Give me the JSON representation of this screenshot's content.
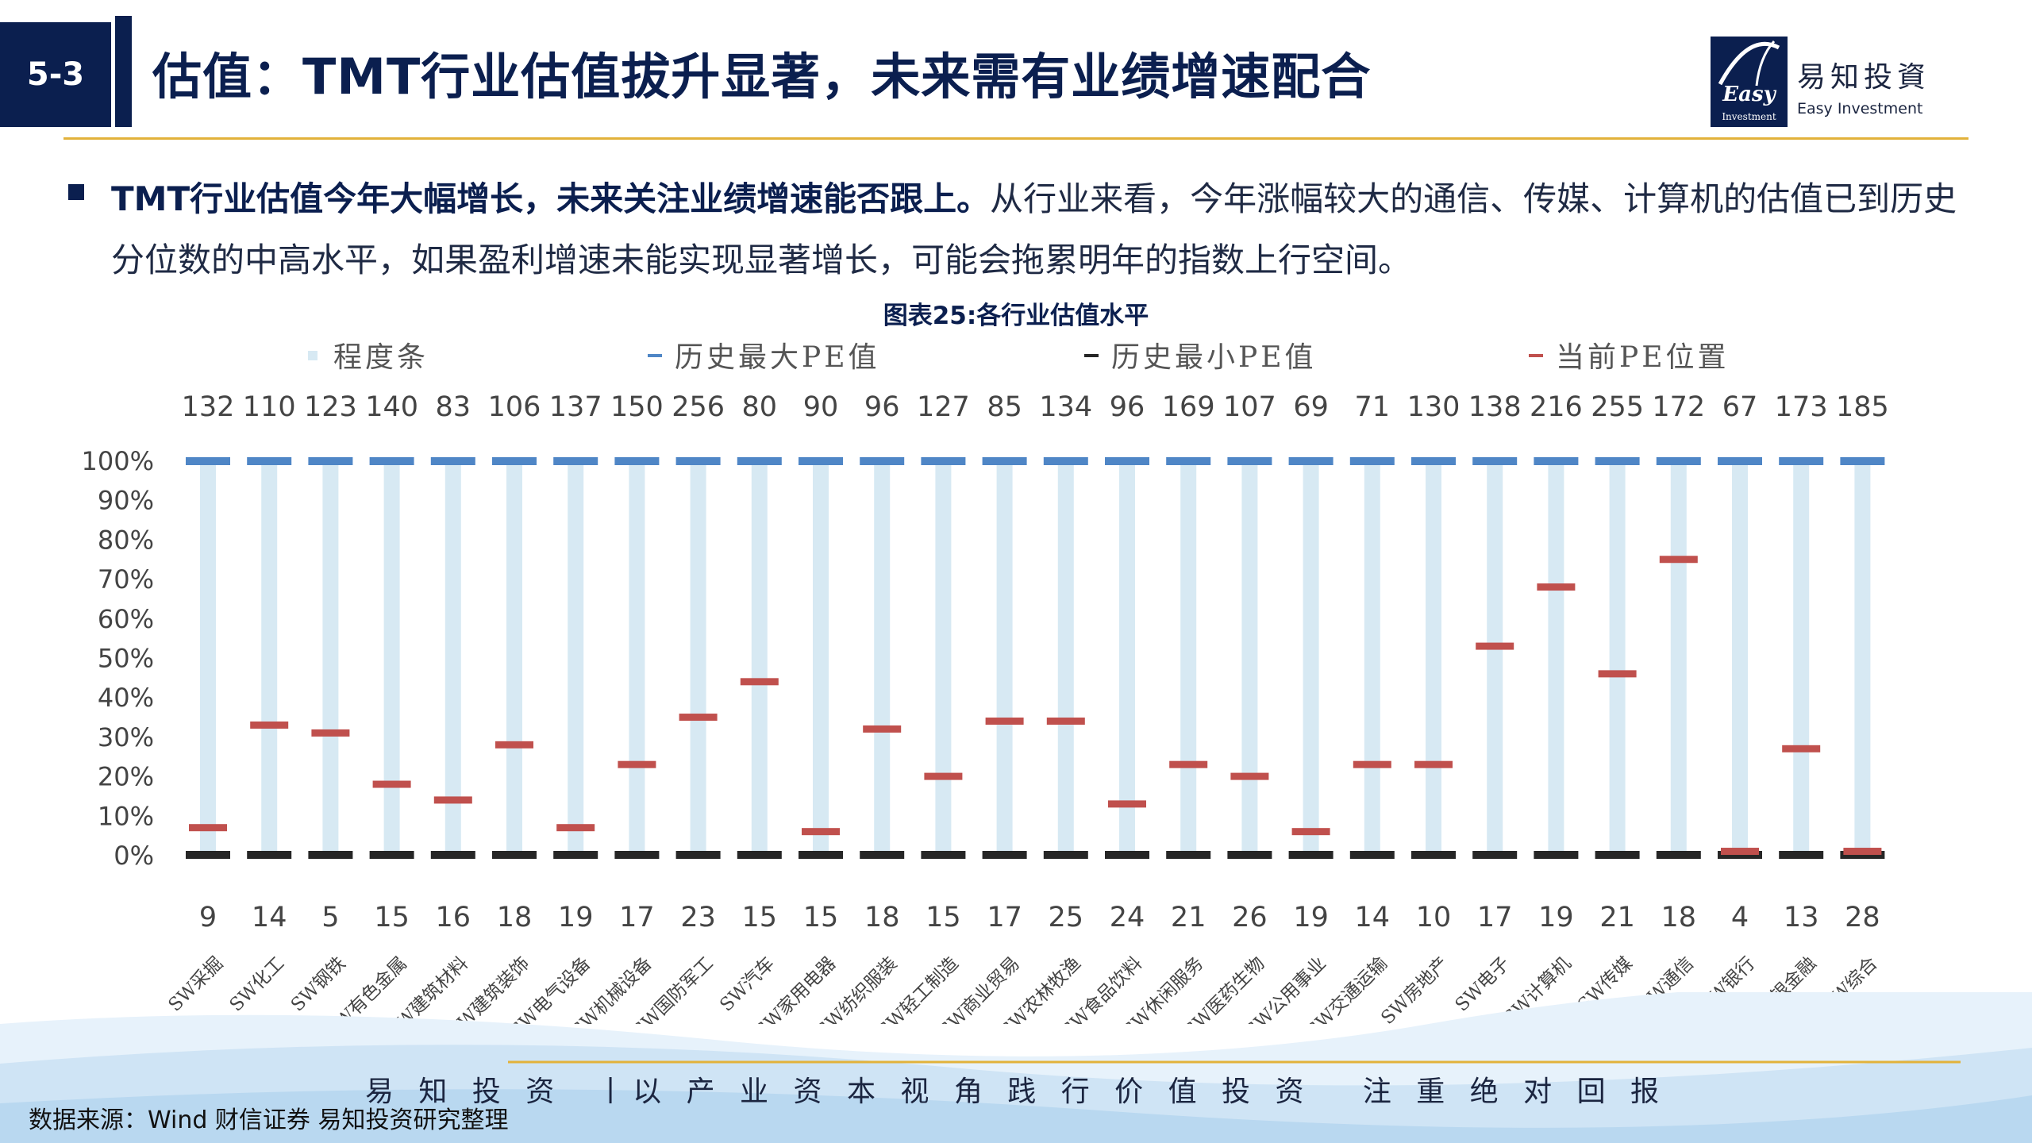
{
  "header": {
    "section_number": "5-3",
    "title": "估值：TMT行业估值拔升显著，未来需有业绩增速配合"
  },
  "logo": {
    "word": "Easy",
    "sub": "Investment",
    "name_cn": "易知投資",
    "name_en": "Easy Investment"
  },
  "bullet": {
    "bold": "TMT行业估值今年大幅增长，未来关注业绩增速能否跟上。",
    "text": "从行业来看，今年涨幅较大的通信、传媒、计算机的估值已到历史分位数的中高水平，如果盈利增速未能实现显著增长，可能会拖累明年的指数上行空间。"
  },
  "figure_title": "图表25:各行业估值水平",
  "footer": {
    "slogan": "易 知 投 资  丨以 产 业 资 本 视 角 践 行 价 值 投 资   注 重 绝 对 回 报",
    "source": "数据来源：Wind 财信证券 易知投资研究整理"
  },
  "colors": {
    "navy": "#0b1f4f",
    "gold": "#e2b23b",
    "bar": "#d7e9f3",
    "max": "#4f86c6",
    "min": "#262626",
    "current": "#c0504d"
  },
  "chart_data": {
    "type": "bar",
    "legend": [
      "程度条",
      "历史最大PE值",
      "历史最小PE值",
      "当前PE位置"
    ],
    "legend_position": "top",
    "categories": [
      "SW采掘",
      "SW化工",
      "SW钢铁",
      "SW有色金属",
      "SW建筑材料",
      "SW建筑装饰",
      "SW电气设备",
      "SW机械设备",
      "SW国防军工",
      "SW汽车",
      "SW家用电器",
      "SW纺织服装",
      "SW轻工制造",
      "SW商业贸易",
      "SW农林牧渔",
      "SW食品饮料",
      "SW休闲服务",
      "SW医药生物",
      "SW公用事业",
      "SW交通运输",
      "SW房地产",
      "SW电子",
      "SW计算机",
      "SW传媒",
      "SW通信",
      "SW银行",
      "SW非银金融",
      "SW综合"
    ],
    "max_pe": [
      "132",
      "110",
      "123",
      "140",
      "83",
      "106",
      "137",
      "150",
      "256",
      "80",
      "90",
      "96",
      "127",
      "85",
      "134",
      "96",
      "169",
      "107",
      "69",
      "71",
      "130",
      "138",
      "216",
      "255",
      "172",
      "67",
      "173",
      "185"
    ],
    "min_pe": [
      "9",
      "14",
      "5",
      "15",
      "16",
      "18",
      "19",
      "17",
      "23",
      "15",
      "15",
      "18",
      "15",
      "17",
      "25",
      "24",
      "21",
      "26",
      "19",
      "14",
      "10",
      "17",
      "19",
      "21",
      "18",
      "4",
      "13",
      "28"
    ],
    "series": [
      {
        "name": "程度条",
        "values": [
          100,
          100,
          100,
          100,
          100,
          100,
          100,
          100,
          100,
          100,
          100,
          100,
          100,
          100,
          100,
          100,
          100,
          100,
          100,
          100,
          100,
          100,
          100,
          100,
          100,
          100,
          100,
          100
        ]
      },
      {
        "name": "历史最大PE值",
        "values": [
          100,
          100,
          100,
          100,
          100,
          100,
          100,
          100,
          100,
          100,
          100,
          100,
          100,
          100,
          100,
          100,
          100,
          100,
          100,
          100,
          100,
          100,
          100,
          100,
          100,
          100,
          100,
          100
        ]
      },
      {
        "name": "历史最小PE值",
        "values": [
          0,
          0,
          0,
          0,
          0,
          0,
          0,
          0,
          0,
          0,
          0,
          0,
          0,
          0,
          0,
          0,
          0,
          0,
          0,
          0,
          0,
          0,
          0,
          0,
          0,
          0,
          0,
          0
        ]
      },
      {
        "name": "当前PE位置",
        "values": [
          7,
          33,
          31,
          18,
          14,
          28,
          7,
          23,
          35,
          44,
          6,
          32,
          20,
          34,
          34,
          13,
          23,
          20,
          6,
          23,
          23,
          53,
          68,
          46,
          75,
          1,
          27,
          1
        ]
      }
    ],
    "y_ticks": [
      "0%",
      "10%",
      "20%",
      "30%",
      "40%",
      "50%",
      "60%",
      "70%",
      "80%",
      "90%",
      "100%"
    ],
    "ylim": [
      0,
      100
    ],
    "grid": false
  }
}
